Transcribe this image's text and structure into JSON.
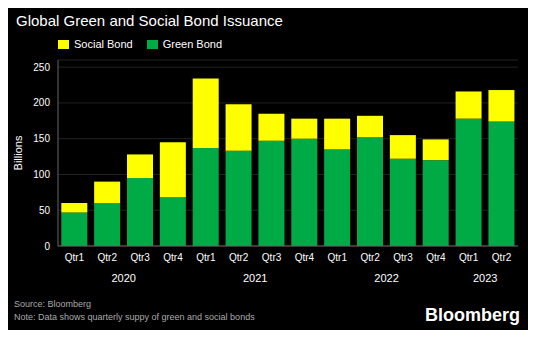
{
  "chart_data": {
    "type": "bar",
    "title": "Global Green and Social Bond Issuance",
    "ylabel": "Billions",
    "categories": [
      "Qtr1",
      "Qtr2",
      "Qtr3",
      "Qtr4",
      "Qtr1",
      "Qtr2",
      "Qtr3",
      "Qtr4",
      "Qtr1",
      "Qtr2",
      "Qtr3",
      "Qtr4",
      "Qtr1",
      "Qtr2"
    ],
    "category_groups": [
      "2020",
      "2020",
      "2020",
      "2020",
      "2021",
      "2021",
      "2021",
      "2021",
      "2022",
      "2022",
      "2022",
      "2022",
      "2023",
      "2023"
    ],
    "series": [
      {
        "name": "Green Bond",
        "color": "#00aa44",
        "values": [
          47,
          60,
          95,
          68,
          137,
          133,
          147,
          150,
          135,
          152,
          122,
          120,
          178,
          174
        ]
      },
      {
        "name": "Social Bond",
        "color": "#ffff00",
        "values": [
          13,
          30,
          33,
          77,
          97,
          65,
          38,
          28,
          43,
          30,
          33,
          29,
          38,
          44
        ]
      }
    ],
    "stacked": true,
    "ylim": [
      0,
      260
    ],
    "yticks": [
      0,
      50,
      100,
      150,
      200,
      250
    ],
    "grid": true,
    "legend": "upper left",
    "annotations": [
      "Source: Bloomberg",
      "Note: Data shows quarterly suppy of green and social bonds",
      "Bloomberg"
    ]
  }
}
